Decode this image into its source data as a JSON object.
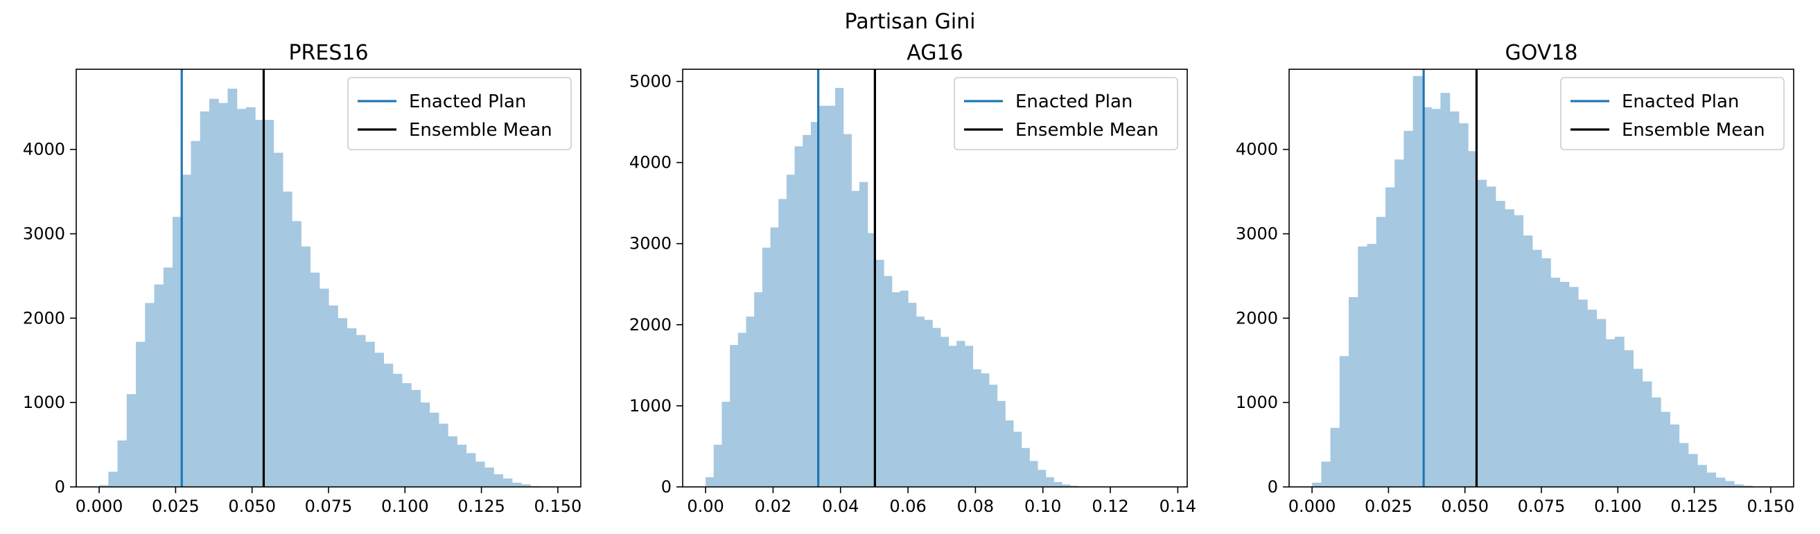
{
  "figure": {
    "suptitle": "Partisan Gini"
  },
  "chart_data": [
    {
      "type": "bar",
      "title": "PRES16",
      "xlabel": "",
      "ylabel": "",
      "xlim": [
        -0.0075,
        0.1575
      ],
      "ylim": [
        0,
        4950
      ],
      "xticks": [
        0.0,
        0.025,
        0.05,
        0.075,
        0.1,
        0.125,
        0.15
      ],
      "xtick_labels": [
        "0.000",
        "0.025",
        "0.050",
        "0.075",
        "0.100",
        "0.125",
        "0.150"
      ],
      "yticks": [
        0,
        1000,
        2000,
        3000,
        4000
      ],
      "ytick_labels": [
        "0",
        "1000",
        "2000",
        "3000",
        "4000"
      ],
      "grid": false,
      "legend": {
        "placement": "top-right",
        "entries": [
          "Enacted Plan",
          "Ensemble Mean"
        ]
      },
      "bin_start": 0.0,
      "bin_width": 0.003,
      "counts": [
        20,
        180,
        550,
        1100,
        1720,
        2180,
        2400,
        2600,
        3200,
        3700,
        4100,
        4450,
        4600,
        4550,
        4720,
        4480,
        4500,
        4350,
        4350,
        3960,
        3500,
        3150,
        2850,
        2540,
        2350,
        2150,
        2000,
        1880,
        1800,
        1720,
        1590,
        1460,
        1340,
        1230,
        1150,
        1000,
        880,
        750,
        600,
        500,
        400,
        300,
        230,
        150,
        100,
        50,
        30,
        10,
        5,
        0
      ],
      "lines": [
        {
          "name": "Enacted Plan",
          "x": 0.027,
          "color": "#1f77b4"
        },
        {
          "name": "Ensemble Mean",
          "x": 0.0538,
          "color": "#000000"
        }
      ],
      "hist_color": "#a6c8e0"
    },
    {
      "type": "bar",
      "title": "AG16",
      "xlabel": "",
      "ylabel": "",
      "xlim": [
        -0.0068,
        0.1428
      ],
      "ylim": [
        0,
        5150
      ],
      "xticks": [
        0.0,
        0.02,
        0.04,
        0.06,
        0.08,
        0.1,
        0.12,
        0.14
      ],
      "xtick_labels": [
        "0.00",
        "0.02",
        "0.04",
        "0.06",
        "0.08",
        "0.10",
        "0.12",
        "0.14"
      ],
      "yticks": [
        0,
        1000,
        2000,
        3000,
        4000,
        5000
      ],
      "ytick_labels": [
        "0",
        "1000",
        "2000",
        "3000",
        "4000",
        "5000"
      ],
      "grid": false,
      "legend": {
        "placement": "top-right",
        "entries": [
          "Enacted Plan",
          "Ensemble Mean"
        ]
      },
      "bin_start": 0.0,
      "bin_width": 0.0024,
      "counts": [
        120,
        520,
        1050,
        1750,
        1900,
        2100,
        2400,
        2950,
        3200,
        3550,
        3850,
        4200,
        4340,
        4500,
        4700,
        4700,
        4920,
        4350,
        3650,
        3760,
        3130,
        2800,
        2600,
        2400,
        2420,
        2270,
        2100,
        2060,
        1960,
        1850,
        1740,
        1800,
        1740,
        1450,
        1400,
        1260,
        1060,
        820,
        680,
        480,
        320,
        210,
        120,
        60,
        30,
        15,
        5,
        0,
        0,
        0
      ],
      "lines": [
        {
          "name": "Enacted Plan",
          "x": 0.0334,
          "color": "#1f77b4"
        },
        {
          "name": "Ensemble Mean",
          "x": 0.0502,
          "color": "#000000"
        }
      ],
      "hist_color": "#a6c8e0"
    },
    {
      "type": "bar",
      "title": "GOV18",
      "xlabel": "",
      "ylabel": "",
      "xlim": [
        -0.0075,
        0.1575
      ],
      "ylim": [
        0,
        4950
      ],
      "xticks": [
        0.0,
        0.025,
        0.05,
        0.075,
        0.1,
        0.125,
        0.15
      ],
      "xtick_labels": [
        "0.000",
        "0.025",
        "0.050",
        "0.075",
        "0.100",
        "0.125",
        "0.150"
      ],
      "yticks": [
        0,
        1000,
        2000,
        3000,
        4000
      ],
      "ytick_labels": [
        "0",
        "1000",
        "2000",
        "3000",
        "4000"
      ],
      "grid": false,
      "legend": {
        "placement": "top-right",
        "entries": [
          "Enacted Plan",
          "Ensemble Mean"
        ]
      },
      "bin_start": 0.0,
      "bin_width": 0.003,
      "counts": [
        50,
        300,
        700,
        1550,
        2250,
        2850,
        2880,
        3200,
        3550,
        3880,
        4220,
        4870,
        4500,
        4480,
        4670,
        4450,
        4310,
        3980,
        3640,
        3560,
        3390,
        3290,
        3220,
        2980,
        2810,
        2710,
        2480,
        2430,
        2370,
        2220,
        2100,
        1990,
        1750,
        1780,
        1620,
        1400,
        1250,
        1060,
        890,
        740,
        520,
        390,
        260,
        170,
        110,
        70,
        30,
        15,
        5,
        0
      ],
      "lines": [
        {
          "name": "Enacted Plan",
          "x": 0.0365,
          "color": "#1f77b4"
        },
        {
          "name": "Ensemble Mean",
          "x": 0.0538,
          "color": "#000000"
        }
      ],
      "hist_color": "#a6c8e0"
    }
  ]
}
